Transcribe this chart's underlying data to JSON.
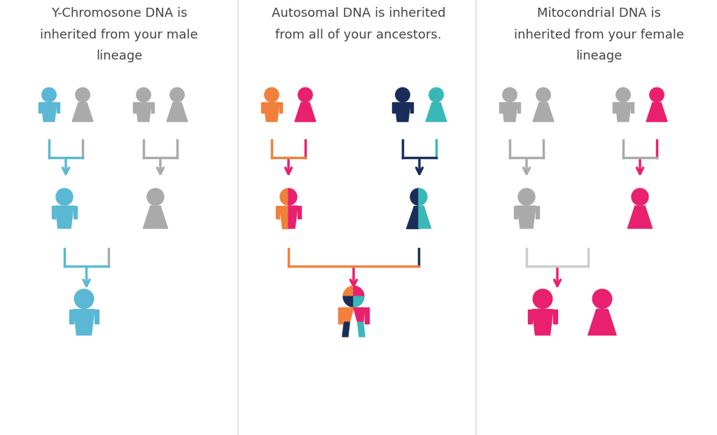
{
  "title1": "Y-Chromosone DNA is\ninherited from your male\nlineage",
  "title2": "Autosomal DNA is inherited\nfrom all of your ancestors.",
  "title3": "Mitocondrial DNA is\ninherited from your female\nlineage",
  "colors": {
    "blue": "#5bb8d4",
    "gray": "#aaaaaa",
    "light_gray": "#cccccc",
    "orange": "#f0803c",
    "pink": "#e8206e",
    "navy": "#1a2d5a",
    "teal": "#3ab8b8"
  },
  "bg_color": "#ffffff",
  "title_fontsize": 13,
  "title_color": "#444444"
}
